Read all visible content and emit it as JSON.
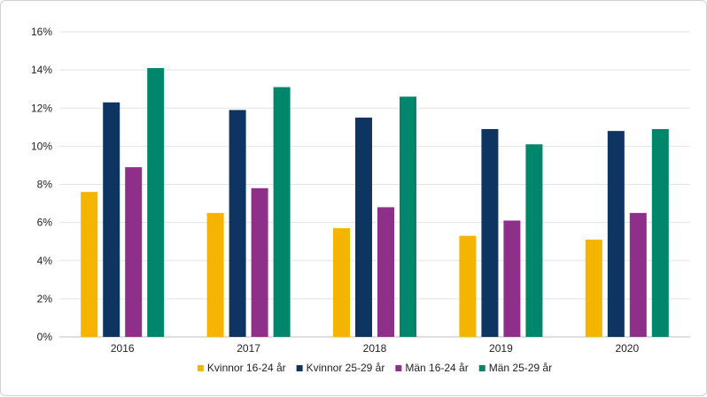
{
  "chart_data": {
    "type": "bar",
    "categories": [
      "2016",
      "2017",
      "2018",
      "2019",
      "2020"
    ],
    "series": [
      {
        "name": "Kvinnor 16-24 år",
        "color": "#F5B400",
        "values": [
          7.6,
          6.5,
          5.7,
          5.3,
          5.1
        ]
      },
      {
        "name": "Kvinnor 25-29 år",
        "color": "#0E3562",
        "values": [
          12.3,
          11.9,
          11.5,
          10.9,
          10.8
        ]
      },
      {
        "name": "Män 16-24 år",
        "color": "#8E2F8A",
        "values": [
          8.9,
          7.8,
          6.8,
          6.1,
          6.5
        ]
      },
      {
        "name": "Män 25-29 år",
        "color": "#00876B",
        "values": [
          14.1,
          13.1,
          12.6,
          10.1,
          10.9
        ]
      }
    ],
    "y_ticks": [
      "0%",
      "2%",
      "4%",
      "6%",
      "8%",
      "10%",
      "12%",
      "14%",
      "16%"
    ],
    "ylim": [
      0,
      16
    ],
    "y_unit": "%",
    "title": "",
    "xlabel": "",
    "ylabel": "",
    "grid": true,
    "legend_position": "bottom"
  }
}
